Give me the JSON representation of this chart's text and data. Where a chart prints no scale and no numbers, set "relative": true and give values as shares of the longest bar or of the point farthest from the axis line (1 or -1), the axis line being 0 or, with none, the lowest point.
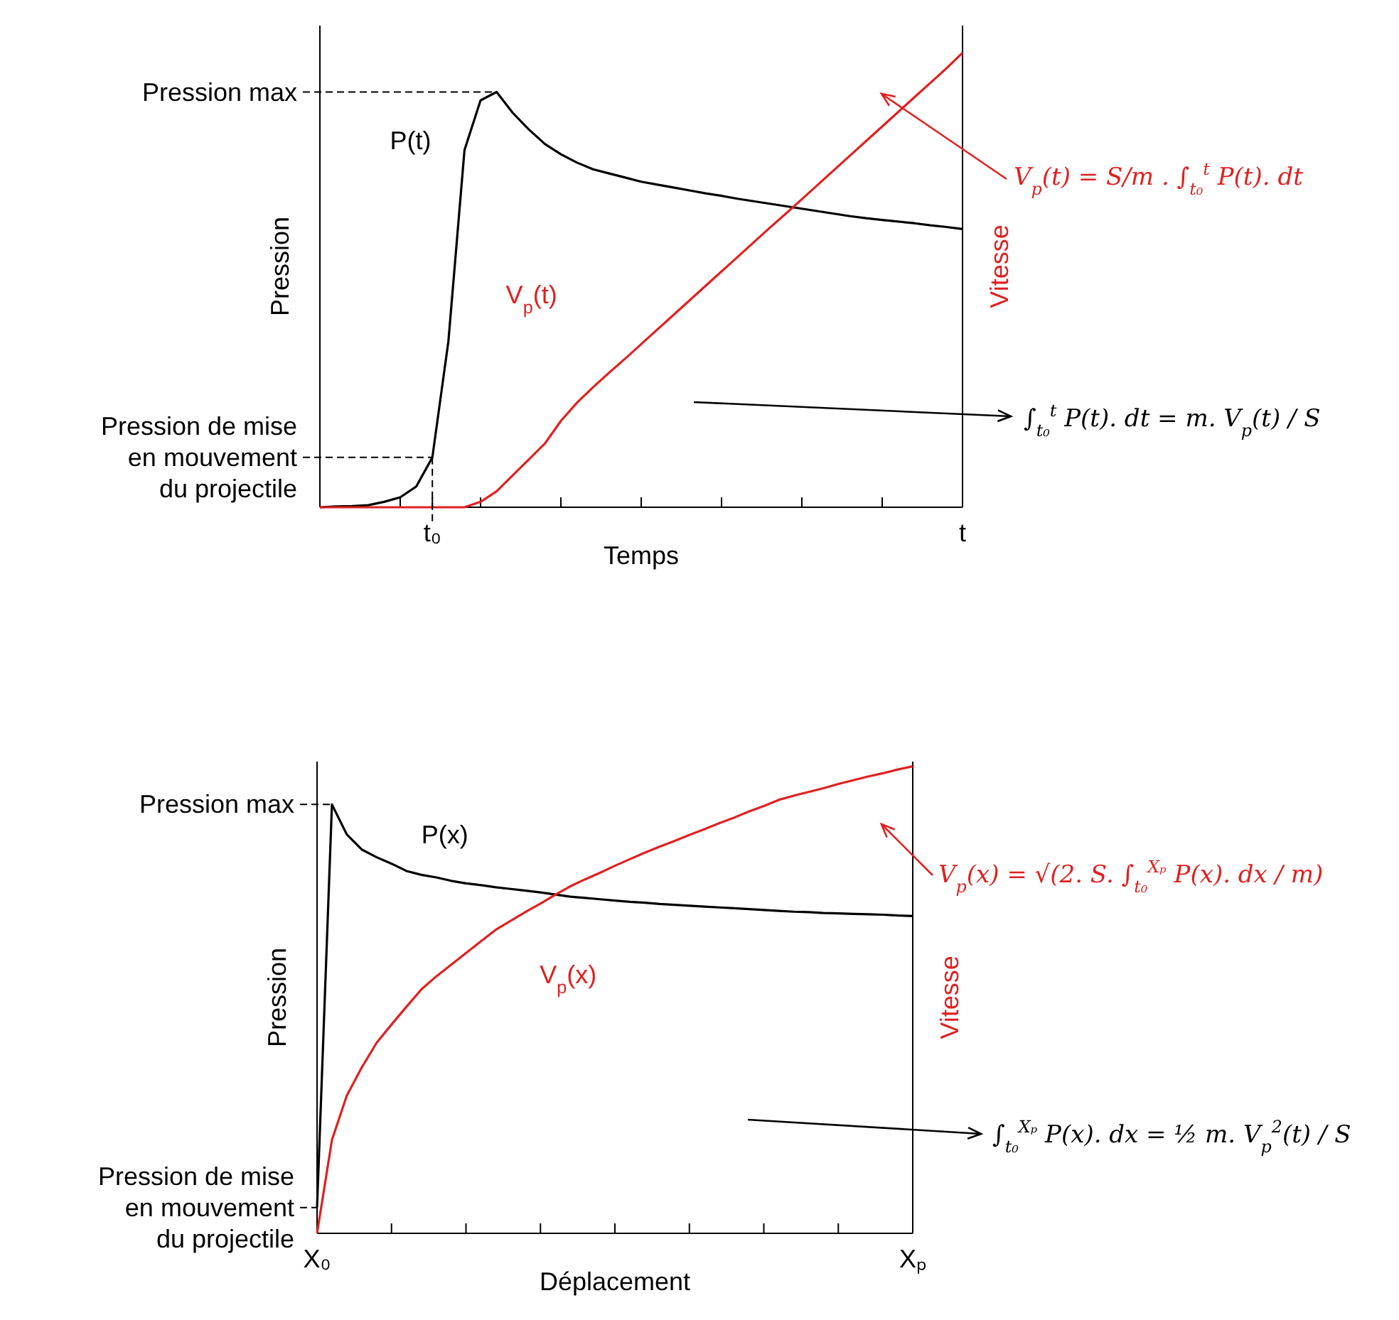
{
  "chart_data": [
    {
      "type": "line",
      "relative": true,
      "xlabel": "Temps",
      "ylabel": "Pression",
      "y2label": "Vitesse",
      "legend": false,
      "categories": [
        null,
        null,
        null,
        null,
        null,
        null,
        null,
        "t₀",
        null,
        null,
        null,
        null,
        null,
        null,
        null,
        null,
        null,
        null,
        null,
        null,
        null,
        null,
        null,
        null,
        null,
        null,
        null,
        null,
        null,
        null,
        null,
        null,
        null,
        null,
        null,
        null,
        null,
        null,
        null,
        null,
        "t"
      ],
      "series": [
        {
          "name": "P(t)",
          "color": "#000000",
          "values": [
            0,
            0.002,
            0.003,
            0.005,
            0.013,
            0.024,
            0.05,
            0.12,
            0.4,
            0.86,
            0.98,
            1,
            0.95,
            0.91,
            0.875,
            0.85,
            0.83,
            0.814,
            0.804,
            0.794,
            0.784,
            0.777,
            0.77,
            0.763,
            0.756,
            0.75,
            0.743,
            0.737,
            0.731,
            0.725,
            0.719,
            0.713,
            0.707,
            0.701,
            0.696,
            0.692,
            0.688,
            0.684,
            0.679,
            0.675,
            0.67
          ]
        },
        {
          "name": "V$_{p}$(t)",
          "color": "#e02020",
          "axis": "y2",
          "values": [
            0,
            0,
            0,
            0,
            0,
            0,
            0,
            0,
            0,
            0,
            0.012,
            0.035,
            0.07,
            0.105,
            0.14,
            0.19,
            0.23,
            0.264,
            0.296,
            0.327,
            0.359,
            0.391,
            0.423,
            0.455,
            0.487,
            0.519,
            0.551,
            0.583,
            0.615,
            0.646,
            0.678,
            0.71,
            0.742,
            0.774,
            0.806,
            0.838,
            0.87,
            0.902,
            0.934,
            0.966,
            1
          ]
        }
      ],
      "ref_lines": [
        {
          "axis": "y",
          "value": 1,
          "label": "Pression max",
          "line_style": "dashed"
        }
      ],
      "annotations": [
        {
          "text": "Pression de mise en mouvement du projectile",
          "x": "t₀",
          "y": 0.12
        },
        "V$_{p}$(t) = S/m . ∫$_{t₀}$$^{t}$ P(t). dt",
        "∫$_{t₀}$$^{t}$ P(t). dt = m. V$_{p}$(t) / S"
      ]
    },
    {
      "type": "line",
      "relative": true,
      "xlabel": "Déplacement",
      "ylabel": "Pression",
      "y2label": "Vitesse",
      "legend": false,
      "categories": [
        "X₀",
        null,
        null,
        null,
        null,
        null,
        null,
        null,
        null,
        null,
        null,
        null,
        null,
        null,
        null,
        null,
        null,
        null,
        null,
        null,
        null,
        null,
        null,
        null,
        null,
        null,
        null,
        null,
        null,
        null,
        null,
        null,
        null,
        null,
        null,
        null,
        null,
        null,
        null,
        null,
        "Xₚ"
      ],
      "series": [
        {
          "name": "P(x)",
          "color": "#000000",
          "values": [
            0.06,
            1,
            0.93,
            0.895,
            0.877,
            0.862,
            0.845,
            0.836,
            0.83,
            0.822,
            0.816,
            0.812,
            0.807,
            0.803,
            0.799,
            0.795,
            0.79,
            0.785,
            0.782,
            0.779,
            0.776,
            0.773,
            0.771,
            0.768,
            0.766,
            0.764,
            0.762,
            0.76,
            0.758,
            0.756,
            0.754,
            0.752,
            0.75,
            0.749,
            0.747,
            0.746,
            0.745,
            0.744,
            0.743,
            0.741,
            0.74
          ]
        },
        {
          "name": "V$_{p}$(x)",
          "color": "#e02020",
          "axis": "y2",
          "values": [
            0,
            0.2,
            0.295,
            0.355,
            0.408,
            0.447,
            0.485,
            0.522,
            0.55,
            0.575,
            0.6,
            0.625,
            0.65,
            0.669,
            0.688,
            0.706,
            0.725,
            0.743,
            0.758,
            0.772,
            0.787,
            0.801,
            0.815,
            0.828,
            0.84,
            0.853,
            0.865,
            0.878,
            0.89,
            0.903,
            0.915,
            0.928,
            0.937,
            0.945,
            0.953,
            0.962,
            0.97,
            0.978,
            0.985,
            0.993,
            1
          ]
        }
      ],
      "ref_lines": [
        {
          "axis": "y",
          "value": 1,
          "label": "Pression max",
          "line_style": "dashed"
        }
      ],
      "annotations": [
        {
          "text": "Pression de mise en mouvement du projectile",
          "x": "X₀",
          "y": 0.06
        },
        "V$_{p}$(x) = √(2. S. ∫$_{t₀}$$^{Xₚ}$ P(x). dx / m)",
        "∫$_{t₀}$$^{Xₚ}$ P(x). dx = ½ m. V$_{p}$$^{2}$(t) / S"
      ]
    }
  ]
}
